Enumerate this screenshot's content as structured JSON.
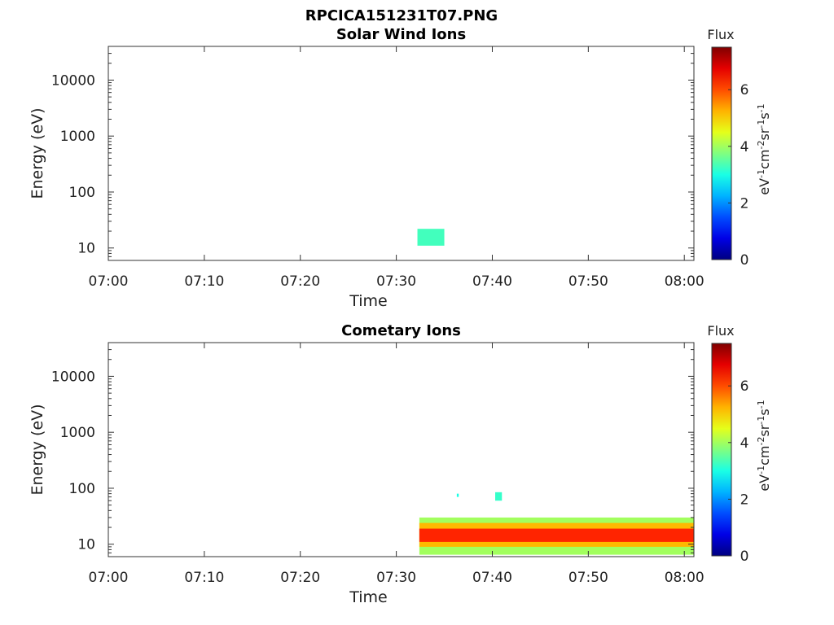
{
  "figure": {
    "title": "RPCICA151231T07.PNG"
  },
  "chart_data": [
    {
      "type": "heatmap",
      "title": "Solar Wind Ions",
      "xlabel": "Time",
      "ylabel": "Energy (eV)",
      "x_ticks": [
        "07:00",
        "07:10",
        "07:20",
        "07:30",
        "07:40",
        "07:50",
        "08:00"
      ],
      "y_ticks": [
        "10",
        "100",
        "1000",
        "10000"
      ],
      "y_scale": "log",
      "xlim": [
        "07:00",
        "08:01"
      ],
      "ylim": [
        6,
        40000
      ],
      "colorbar": {
        "label_top": "Flux",
        "unit": "eV-1cm-2sr-1s-1",
        "ticks": [
          "0",
          "2",
          "4",
          "6"
        ],
        "range": [
          0,
          7.5
        ],
        "colormap": "jet"
      },
      "regions": [
        {
          "t_start": "07:32.2",
          "t_end": "07:35.0",
          "e_low": 11,
          "e_high": 22,
          "flux": 3.3
        }
      ]
    },
    {
      "type": "heatmap",
      "title": "Cometary Ions",
      "xlabel": "Time",
      "ylabel": "Energy (eV)",
      "x_ticks": [
        "07:00",
        "07:10",
        "07:20",
        "07:30",
        "07:40",
        "07:50",
        "08:00"
      ],
      "y_ticks": [
        "10",
        "100",
        "1000",
        "10000"
      ],
      "y_scale": "log",
      "xlim": [
        "07:00",
        "08:01"
      ],
      "ylim": [
        6,
        40000
      ],
      "colorbar": {
        "label_top": "Flux",
        "unit": "eV-1cm-2sr-1s-1",
        "ticks": [
          "0",
          "2",
          "4",
          "6"
        ],
        "range": [
          0,
          7.5
        ],
        "colormap": "jet"
      },
      "regions": [
        {
          "t_start": "07:32.4",
          "t_end": "08:01",
          "e_low": 6.5,
          "e_high": 30,
          "flux": 4.0
        },
        {
          "t_start": "07:32.4",
          "t_end": "08:01",
          "e_low": 9,
          "e_high": 24,
          "flux": 5.2
        },
        {
          "t_start": "07:32.4",
          "t_end": "08:01",
          "e_low": 11,
          "e_high": 19,
          "flux": 6.3
        },
        {
          "t_start": "07:40.3",
          "t_end": "07:41.0",
          "e_low": 60,
          "e_high": 85,
          "flux": 3.2
        },
        {
          "t_start": "07:36.3",
          "t_end": "07:36.5",
          "e_low": 70,
          "e_high": 80,
          "flux": 3.0
        }
      ]
    }
  ]
}
